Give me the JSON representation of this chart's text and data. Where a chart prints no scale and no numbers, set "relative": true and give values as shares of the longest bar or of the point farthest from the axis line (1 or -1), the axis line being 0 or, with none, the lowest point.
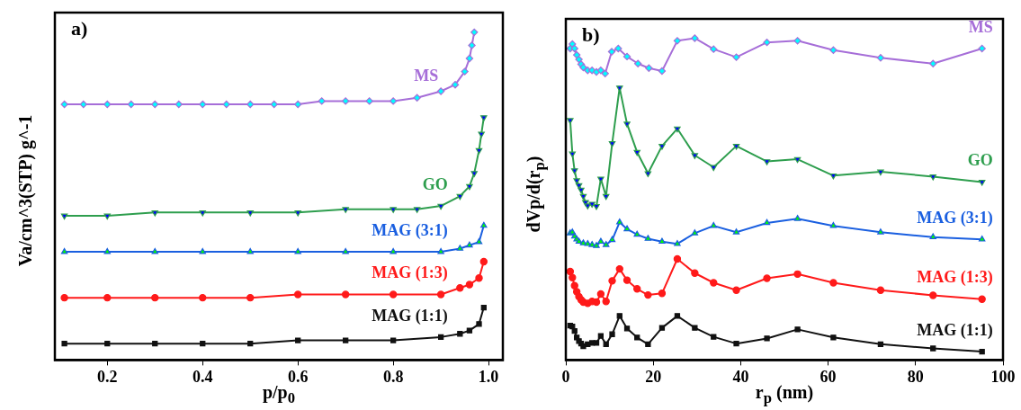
{
  "chart_data": [
    {
      "type": "line",
      "title": "a)",
      "xlabel": "p/p$_{0}$",
      "ylabel": "Va/cm^3(STP) g^-1",
      "relative": true,
      "xlim": [
        0.09,
        1.03
      ],
      "xticks": [
        0.2,
        0.4,
        0.6,
        0.8,
        {
          "value": 1,
          "label": "1.0"
        }
      ],
      "series": [
        {
          "name": "MS",
          "color": "#a66ed8",
          "marker": "diamond",
          "x": [
            0.11,
            0.15,
            0.2,
            0.25,
            0.3,
            0.35,
            0.4,
            0.45,
            0.5,
            0.55,
            0.6,
            0.65,
            0.7,
            0.75,
            0.8,
            0.85,
            0.9,
            0.93,
            0.95,
            0.96,
            0.965,
            0.97
          ],
          "values": [
            0.78,
            0.78,
            0.78,
            0.78,
            0.78,
            0.78,
            0.78,
            0.78,
            0.78,
            0.78,
            0.78,
            0.79,
            0.79,
            0.79,
            0.79,
            0.8,
            0.82,
            0.84,
            0.88,
            0.92,
            0.96,
            1
          ],
          "colors": [
            "#00ffff",
            "#00ffff",
            "#00ffff",
            "#00ffff",
            "#00ffff",
            "#00ffff",
            "#00ffff",
            "#00ffff",
            "#00ffff",
            "#00ffff",
            "#00ffff",
            "#00ffff",
            "#00ffff",
            "#00ffff",
            "#00ffff",
            "#00ffff",
            "#00ffff",
            "#00ffff",
            "#00ffff",
            "#00ffff",
            "#00ffff",
            "#00ffff"
          ]
        },
        {
          "name": "GO",
          "color": "#2e9e4e",
          "marker": "triangle-down",
          "x": [
            0.11,
            0.2,
            0.3,
            0.4,
            0.5,
            0.6,
            0.7,
            0.8,
            0.85,
            0.9,
            0.94,
            0.96,
            0.97,
            0.98,
            0.985,
            0.99
          ],
          "values": [
            0.44,
            0.44,
            0.45,
            0.45,
            0.45,
            0.45,
            0.46,
            0.46,
            0.46,
            0.47,
            0.5,
            0.53,
            0.57,
            0.64,
            0.69,
            0.74
          ],
          "colors": [
            "#0000ff",
            "#0000ff",
            "#0000ff",
            "#0000ff",
            "#0000ff",
            "#0000ff",
            "#0000ff",
            "#0000ff",
            "#0000ff",
            "#0000ff",
            "#0000ff",
            "#0000ff",
            "#0000ff",
            "#0000ff",
            "#0000ff",
            "#0000ff"
          ]
        },
        {
          "name": "MAG (3:1)",
          "color": "#1a5fe0",
          "marker": "triangle",
          "x": [
            0.11,
            0.2,
            0.3,
            0.4,
            0.5,
            0.6,
            0.7,
            0.8,
            0.9,
            0.94,
            0.96,
            0.98,
            0.99
          ],
          "values": [
            0.33,
            0.33,
            0.33,
            0.33,
            0.33,
            0.33,
            0.33,
            0.33,
            0.33,
            0.34,
            0.35,
            0.36,
            0.41
          ],
          "colors": [
            "#00ff00",
            "#00ff00",
            "#00ff00",
            "#00ff00",
            "#00ff00",
            "#00ff00",
            "#00ff00",
            "#00ff00",
            "#00ff00",
            "#00ff00",
            "#00ff00",
            "#00ff00",
            "#00ff00"
          ]
        },
        {
          "name": "MAG (1:3)",
          "color": "#ff1a1a",
          "marker": "circle",
          "x": [
            0.11,
            0.2,
            0.3,
            0.4,
            0.5,
            0.6,
            0.7,
            0.8,
            0.9,
            0.94,
            0.96,
            0.98,
            0.99
          ],
          "values": [
            0.19,
            0.19,
            0.19,
            0.19,
            0.19,
            0.2,
            0.2,
            0.2,
            0.2,
            0.22,
            0.23,
            0.25,
            0.3
          ]
        },
        {
          "name": "MAG (1:1)",
          "color": "#111111",
          "marker": "square",
          "x": [
            0.11,
            0.2,
            0.3,
            0.4,
            0.5,
            0.6,
            0.7,
            0.8,
            0.9,
            0.94,
            0.96,
            0.98,
            0.99
          ],
          "values": [
            0.05,
            0.05,
            0.05,
            0.05,
            0.05,
            0.06,
            0.06,
            0.06,
            0.07,
            0.08,
            0.09,
            0.11,
            0.16
          ]
        }
      ]
    },
    {
      "type": "line",
      "title": "b)",
      "xlabel": "r$_{p}$ (nm)",
      "ylabel": "dVp/d(r$_{p}$)",
      "relative": true,
      "xlim": [
        0,
        100
      ],
      "xticks": [
        0,
        20,
        40,
        60,
        80,
        100
      ],
      "series": [
        {
          "name": "MS",
          "color": "#a66ed8",
          "marker": "diamond",
          "x": [
            1,
            1.5,
            2,
            2.5,
            3,
            3.5,
            4,
            5,
            6,
            7,
            8,
            9,
            10.5,
            12,
            14,
            16.5,
            19,
            22,
            25.5,
            29.5,
            33.8,
            39,
            46,
            53,
            61.2,
            72,
            84,
            95.2
          ],
          "values": [
            0.968,
            0.982,
            0.968,
            0.948,
            0.934,
            0.919,
            0.909,
            0.9,
            0.9,
            0.895,
            0.9,
            0.89,
            0.958,
            0.968,
            0.943,
            0.921,
            0.907,
            0.898,
            0.992,
            1,
            0.966,
            0.941,
            0.987,
            0.992,
            0.963,
            0.939,
            0.921,
            0.968
          ],
          "colors": [
            "#00ffff",
            "#00ffff",
            "#00ffff",
            "#00ffff",
            "#00ffff",
            "#00ffff",
            "#00ffff",
            "#00ffff",
            "#00ffff",
            "#00ffff",
            "#00ffff",
            "#00ffff",
            "#00ffff",
            "#00ffff",
            "#00ffff",
            "#00ffff",
            "#00ffff",
            "#00ffff",
            "#00ffff",
            "#00ffff",
            "#00ffff",
            "#00ffff",
            "#00ffff",
            "#00ffff",
            "#00ffff",
            "#00ffff",
            "#00ffff",
            "#00ffff"
          ]
        },
        {
          "name": "GO",
          "color": "#2e9e4e",
          "marker": "triangle-down",
          "x": [
            1,
            1.5,
            2,
            2.5,
            3,
            3.5,
            4,
            4.5,
            5,
            6,
            7,
            8,
            9.2,
            10.6,
            12.3,
            14,
            16.3,
            18.8,
            22,
            25.5,
            29.5,
            33.8,
            39,
            46,
            53,
            61.2,
            72,
            84,
            95.2
          ],
          "values": [
            0.745,
            0.641,
            0.589,
            0.558,
            0.543,
            0.529,
            0.509,
            0.49,
            0.48,
            0.485,
            0.478,
            0.563,
            0.509,
            0.673,
            0.846,
            0.734,
            0.646,
            0.58,
            0.665,
            0.719,
            0.636,
            0.599,
            0.665,
            0.617,
            0.624,
            0.573,
            0.585,
            0.57,
            0.553
          ],
          "colors": [
            "#0000ff",
            "#0000ff",
            "#0000ff",
            "#0000ff",
            "#0000ff",
            "#0000ff",
            "#0000ff",
            "#0000ff",
            "#0000ff",
            "#0000ff",
            "#0000ff",
            "#0000ff",
            "#0000ff",
            "#0000ff",
            "#0000ff",
            "#0000ff",
            "#0000ff",
            "#0000ff",
            "#0000ff",
            "#0000ff",
            "#0000ff",
            "#0000ff",
            "#0000ff",
            "#0000ff",
            "#0000ff",
            "#0000ff",
            "#0000ff",
            "#0000ff",
            "#0000ff"
          ]
        },
        {
          "name": "MAG (3:1)",
          "color": "#1a5fe0",
          "marker": "triangle",
          "x": [
            1,
            1.5,
            2,
            2.5,
            3,
            4,
            5,
            6,
            7,
            8,
            9.2,
            10.6,
            12.3,
            14,
            16.3,
            18.8,
            22,
            25.5,
            29.5,
            33.8,
            39,
            46,
            53,
            61.2,
            72,
            84,
            95.2
          ],
          "values": [
            0.394,
            0.397,
            0.384,
            0.375,
            0.368,
            0.363,
            0.361,
            0.358,
            0.355,
            0.368,
            0.358,
            0.373,
            0.428,
            0.407,
            0.39,
            0.377,
            0.368,
            0.361,
            0.394,
            0.417,
            0.397,
            0.426,
            0.439,
            0.417,
            0.397,
            0.382,
            0.375
          ],
          "colors": [
            "#00ff00",
            "#00ff00",
            "#00ff00",
            "#00ff00",
            "#00ff00",
            "#00ff00",
            "#00ff00",
            "#00ff00",
            "#00ff00",
            "#00ff00",
            "#00ff00",
            "#00ff00",
            "#00ff00",
            "#00ff00",
            "#00ff00",
            "#00ff00",
            "#00ff00",
            "#00ff00",
            "#00ff00",
            "#00ff00",
            "#00ff00",
            "#00ff00",
            "#00ff00",
            "#00ff00",
            "#00ff00",
            "#00ff00",
            "#00ff00"
          ]
        },
        {
          "name": "MAG (1:3)",
          "color": "#ff1a1a",
          "marker": "circle",
          "x": [
            1,
            1.5,
            2,
            2.5,
            3,
            3.5,
            4,
            5,
            6,
            7,
            8,
            9.2,
            10.6,
            12.3,
            14,
            16.3,
            18.8,
            22,
            25.5,
            29.5,
            33.8,
            39,
            46,
            53,
            61.2,
            72,
            84,
            95.2
          ],
          "values": [
            0.275,
            0.256,
            0.231,
            0.212,
            0.197,
            0.187,
            0.18,
            0.176,
            0.182,
            0.18,
            0.205,
            0.182,
            0.246,
            0.283,
            0.248,
            0.221,
            0.202,
            0.207,
            0.314,
            0.27,
            0.24,
            0.217,
            0.254,
            0.267,
            0.24,
            0.217,
            0.201,
            0.189
          ]
        },
        {
          "name": "MAG (1:1)",
          "color": "#111111",
          "marker": "square",
          "x": [
            1,
            1.5,
            2,
            2.5,
            3,
            3.5,
            4,
            5,
            6,
            7,
            8,
            9.2,
            10.6,
            12.3,
            14,
            16.3,
            18.8,
            22,
            25.5,
            29.5,
            33.8,
            39,
            46,
            53,
            61.2,
            72,
            84,
            95.2
          ],
          "values": [
            0.107,
            0.104,
            0.09,
            0.07,
            0.059,
            0.051,
            0.043,
            0.049,
            0.053,
            0.053,
            0.075,
            0.049,
            0.08,
            0.137,
            0.098,
            0.07,
            0.049,
            0.1,
            0.137,
            0.1,
            0.072,
            0.051,
            0.067,
            0.095,
            0.07,
            0.049,
            0.036,
            0.026
          ]
        }
      ]
    }
  ]
}
